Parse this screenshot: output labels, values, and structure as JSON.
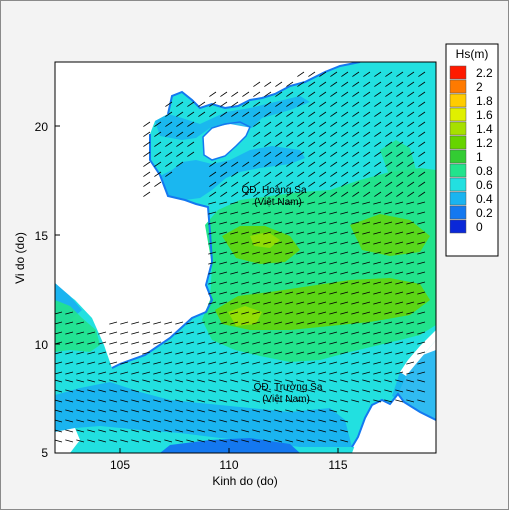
{
  "figure": {
    "xlabel": "Kinh do (do)",
    "ylabel": "Vi do (do)",
    "xlim": [
      102,
      119.5
    ],
    "ylim": [
      5,
      23
    ],
    "x_ticks": [
      "105",
      "110",
      "115"
    ],
    "y_ticks": [
      "5",
      "10",
      "15",
      "20"
    ],
    "annotations": [
      {
        "line1": "QĐ. Hoàng Sa",
        "line2": "(Việt Nam)",
        "lon": 112.0,
        "lat": 16.8
      },
      {
        "line1": "QĐ. Trường Sa",
        "line2": "(Việt Nam)",
        "lon": 112.6,
        "lat": 7.2
      }
    ]
  },
  "legend": {
    "title": "Hs(m)",
    "labels": [
      "2.2",
      "2",
      "1.8",
      "1.6",
      "1.4",
      "1.2",
      "1",
      "0.8",
      "0.6",
      "0.4",
      "0.2",
      "0"
    ],
    "colors": [
      "#ff1a00",
      "#ff7a00",
      "#ffcc00",
      "#e0f000",
      "#a6e000",
      "#66d400",
      "#33cc33",
      "#22e38c",
      "#22e0e0",
      "#1ab4f0",
      "#1478f0",
      "#0a28d8"
    ]
  },
  "colors": {
    "land": "#ffffff",
    "sea_cyan": "#22e0e0",
    "sea_blue": "#1ab4f0",
    "sea_green": "#22e38c",
    "sea_lime": "#66d400",
    "coast_edge": "#1478f0",
    "arrow": "#000000"
  }
}
